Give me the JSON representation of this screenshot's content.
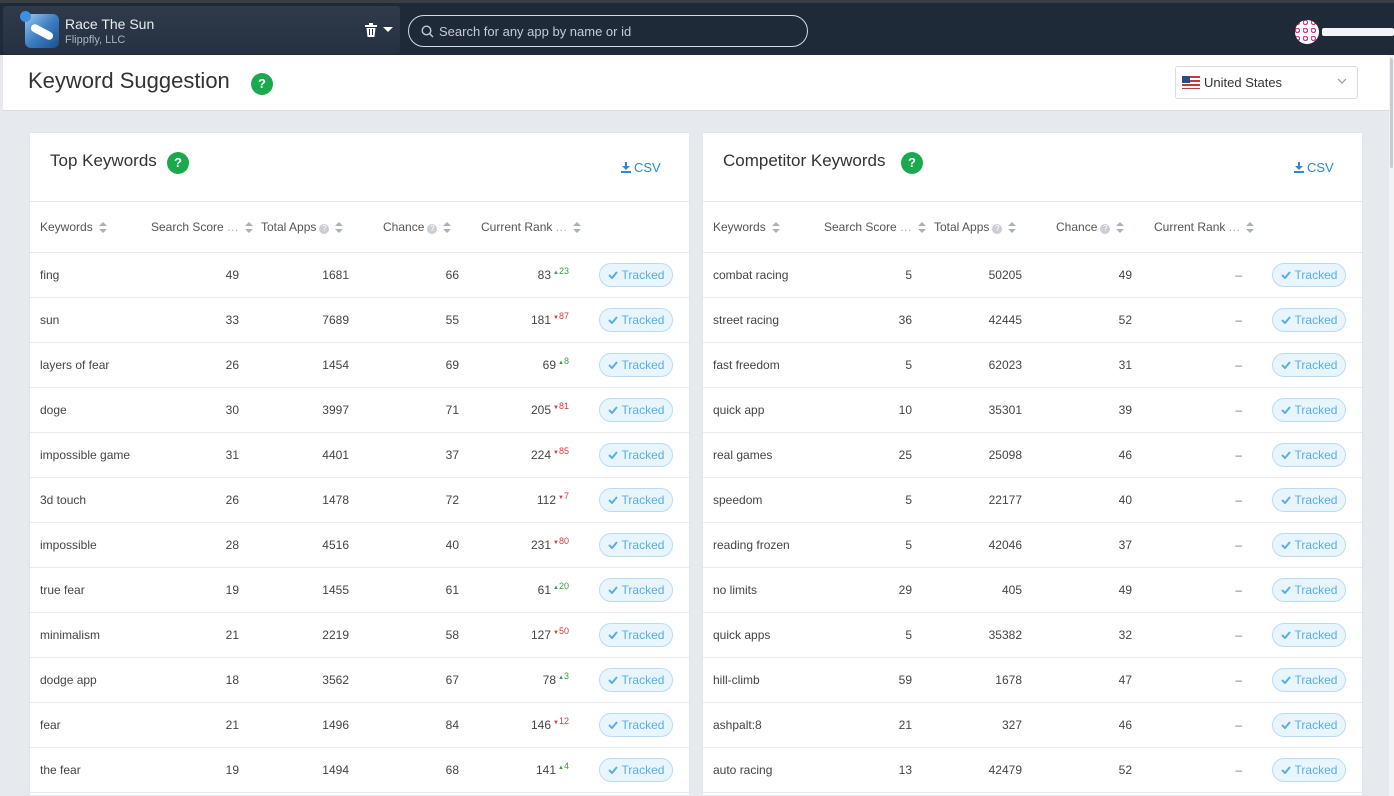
{
  "app": {
    "name": "Race The Sun",
    "developer": "Flippfly, LLC"
  },
  "search": {
    "placeholder": "Search for any app by name or id"
  },
  "page": {
    "title": "Keyword Suggestion",
    "country": "United States"
  },
  "tracked_label": "Tracked",
  "panels": {
    "top": {
      "title": "Top Keywords",
      "csv_label": "CSV",
      "columns": {
        "keywords": "Keywords",
        "search_score": "Search Score",
        "total_apps": "Total Apps",
        "chance": "Chance",
        "current_rank": "Current Rank"
      },
      "rows": [
        {
          "keyword": "fing",
          "score": "49",
          "apps": "1681",
          "chance": "66",
          "rank": "83",
          "delta": "23",
          "dir": "up"
        },
        {
          "keyword": "sun",
          "score": "33",
          "apps": "7689",
          "chance": "55",
          "rank": "181",
          "delta": "87",
          "dir": "down"
        },
        {
          "keyword": "layers of fear",
          "score": "26",
          "apps": "1454",
          "chance": "69",
          "rank": "69",
          "delta": "8",
          "dir": "up"
        },
        {
          "keyword": "doge",
          "score": "30",
          "apps": "3997",
          "chance": "71",
          "rank": "205",
          "delta": "81",
          "dir": "down"
        },
        {
          "keyword": "impossible game",
          "score": "31",
          "apps": "4401",
          "chance": "37",
          "rank": "224",
          "delta": "85",
          "dir": "down"
        },
        {
          "keyword": "3d touch",
          "score": "26",
          "apps": "1478",
          "chance": "72",
          "rank": "112",
          "delta": "7",
          "dir": "down"
        },
        {
          "keyword": "impossible",
          "score": "28",
          "apps": "4516",
          "chance": "40",
          "rank": "231",
          "delta": "80",
          "dir": "down"
        },
        {
          "keyword": "true fear",
          "score": "19",
          "apps": "1455",
          "chance": "61",
          "rank": "61",
          "delta": "20",
          "dir": "up"
        },
        {
          "keyword": "minimalism",
          "score": "21",
          "apps": "2219",
          "chance": "58",
          "rank": "127",
          "delta": "50",
          "dir": "down"
        },
        {
          "keyword": "dodge app",
          "score": "18",
          "apps": "3562",
          "chance": "67",
          "rank": "78",
          "delta": "3",
          "dir": "up"
        },
        {
          "keyword": "fear",
          "score": "21",
          "apps": "1496",
          "chance": "84",
          "rank": "146",
          "delta": "12",
          "dir": "down"
        },
        {
          "keyword": "the fear",
          "score": "19",
          "apps": "1494",
          "chance": "68",
          "rank": "141",
          "delta": "4",
          "dir": "up"
        }
      ]
    },
    "competitor": {
      "title": "Competitor Keywords",
      "csv_label": "CSV",
      "columns": {
        "keywords": "Keywords",
        "search_score": "Search Score",
        "total_apps": "Total Apps",
        "chance": "Chance",
        "current_rank": "Current Rank"
      },
      "rows": [
        {
          "keyword": "combat racing",
          "score": "5",
          "apps": "50205",
          "chance": "49",
          "rank": "–"
        },
        {
          "keyword": "street racing",
          "score": "36",
          "apps": "42445",
          "chance": "52",
          "rank": "–"
        },
        {
          "keyword": "fast freedom",
          "score": "5",
          "apps": "62023",
          "chance": "31",
          "rank": "–"
        },
        {
          "keyword": "quick app",
          "score": "10",
          "apps": "35301",
          "chance": "39",
          "rank": "–"
        },
        {
          "keyword": "real games",
          "score": "25",
          "apps": "25098",
          "chance": "46",
          "rank": "–"
        },
        {
          "keyword": "speedom",
          "score": "5",
          "apps": "22177",
          "chance": "40",
          "rank": "–"
        },
        {
          "keyword": "reading frozen",
          "score": "5",
          "apps": "42046",
          "chance": "37",
          "rank": "–"
        },
        {
          "keyword": "no limits",
          "score": "29",
          "apps": "405",
          "chance": "49",
          "rank": "–"
        },
        {
          "keyword": "quick apps",
          "score": "5",
          "apps": "35382",
          "chance": "32",
          "rank": "–"
        },
        {
          "keyword": "hill-climb",
          "score": "59",
          "apps": "1678",
          "chance": "47",
          "rank": "–"
        },
        {
          "keyword": "ashpalt:8",
          "score": "21",
          "apps": "327",
          "chance": "46",
          "rank": "–"
        },
        {
          "keyword": "auto racing",
          "score": "13",
          "apps": "42479",
          "chance": "52",
          "rank": "–"
        }
      ]
    }
  }
}
